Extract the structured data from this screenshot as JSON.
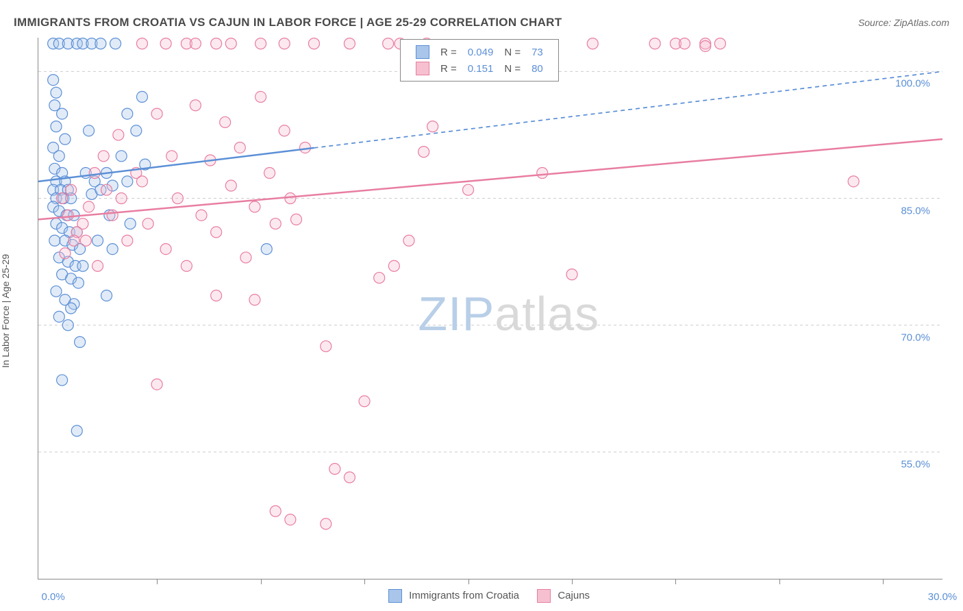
{
  "title": "IMMIGRANTS FROM CROATIA VS CAJUN IN LABOR FORCE | AGE 25-29 CORRELATION CHART",
  "source_label": "Source: ",
  "source_name": "ZipAtlas.com",
  "y_axis_label": "In Labor Force | Age 25-29",
  "watermark": {
    "text_a": "ZIP",
    "text_b": "atlas",
    "color_a": "#b9cfe8",
    "color_b": "#d9d9d9",
    "fontsize": 70
  },
  "plot": {
    "type": "scatter",
    "background": "#ffffff",
    "grid_color": "#cccccc",
    "axis_color": "#888888",
    "xlim": [
      -0.5,
      30.0
    ],
    "ylim": [
      40.0,
      104.0
    ],
    "x_ticks": [
      0.0,
      30.0
    ],
    "x_tick_labels": [
      "0.0%",
      "30.0%"
    ],
    "x_minor_ticks": [
      3.5,
      7.0,
      10.5,
      14.0,
      17.5,
      21.0,
      24.5,
      28.0
    ],
    "y_gridlines": [
      55.0,
      70.0,
      85.0,
      100.0
    ],
    "y_tick_labels": [
      "55.0%",
      "70.0%",
      "85.0%",
      "100.0%"
    ],
    "marker_radius": 8,
    "marker_fill_opacity": 0.35,
    "marker_stroke_width": 1.2
  },
  "series": [
    {
      "id": "croatia",
      "label": "Immigrants from Croatia",
      "color_stroke": "#5b8fd6",
      "color_fill": "#a9c5ea",
      "R": "0.049",
      "N": "73",
      "trend": {
        "x1": -0.5,
        "y1": 87.0,
        "x2": 30.0,
        "y2": 100.0,
        "solid_until_x": 8.8,
        "extrapolate_dash": "6 5",
        "width": 2.5
      },
      "points": [
        [
          0.0,
          103.3
        ],
        [
          0.2,
          103.3
        ],
        [
          0.5,
          103.3
        ],
        [
          0.8,
          103.3
        ],
        [
          1.0,
          103.3
        ],
        [
          1.3,
          103.3
        ],
        [
          1.6,
          103.3
        ],
        [
          2.1,
          103.3
        ],
        [
          0.0,
          99.0
        ],
        [
          0.1,
          97.5
        ],
        [
          0.05,
          96.0
        ],
        [
          0.3,
          95.0
        ],
        [
          0.1,
          93.5
        ],
        [
          0.4,
          92.0
        ],
        [
          0.0,
          91.0
        ],
        [
          0.2,
          90.0
        ],
        [
          0.05,
          88.5
        ],
        [
          0.3,
          88.0
        ],
        [
          0.1,
          87.0
        ],
        [
          0.4,
          87.0
        ],
        [
          0.0,
          86.0
        ],
        [
          0.25,
          86.0
        ],
        [
          0.5,
          86.0
        ],
        [
          0.1,
          85.0
        ],
        [
          0.35,
          85.0
        ],
        [
          0.6,
          85.0
        ],
        [
          0.0,
          84.0
        ],
        [
          0.2,
          83.5
        ],
        [
          0.45,
          83.0
        ],
        [
          0.7,
          83.0
        ],
        [
          0.1,
          82.0
        ],
        [
          0.3,
          81.5
        ],
        [
          0.55,
          81.0
        ],
        [
          0.8,
          81.0
        ],
        [
          0.05,
          80.0
        ],
        [
          0.4,
          80.0
        ],
        [
          0.65,
          79.5
        ],
        [
          0.9,
          79.0
        ],
        [
          0.2,
          78.0
        ],
        [
          0.5,
          77.5
        ],
        [
          0.75,
          77.0
        ],
        [
          1.0,
          77.0
        ],
        [
          0.3,
          76.0
        ],
        [
          0.6,
          75.5
        ],
        [
          0.85,
          75.0
        ],
        [
          0.1,
          74.0
        ],
        [
          0.4,
          73.0
        ],
        [
          0.7,
          72.5
        ],
        [
          0.2,
          71.0
        ],
        [
          0.5,
          70.0
        ],
        [
          1.1,
          88.0
        ],
        [
          1.4,
          87.0
        ],
        [
          1.3,
          85.5
        ],
        [
          1.6,
          86.0
        ],
        [
          1.8,
          88.0
        ],
        [
          2.0,
          86.5
        ],
        [
          2.3,
          90.0
        ],
        [
          2.0,
          79.0
        ],
        [
          2.5,
          87.0
        ],
        [
          2.8,
          93.0
        ],
        [
          2.6,
          82.0
        ],
        [
          3.1,
          89.0
        ],
        [
          3.0,
          97.0
        ],
        [
          0.3,
          63.5
        ],
        [
          0.8,
          57.5
        ],
        [
          0.6,
          72.0
        ],
        [
          1.8,
          73.5
        ],
        [
          2.5,
          95.0
        ],
        [
          1.2,
          93.0
        ],
        [
          7.2,
          79.0
        ],
        [
          1.9,
          83.0
        ],
        [
          0.9,
          68.0
        ],
        [
          1.5,
          80.0
        ]
      ]
    },
    {
      "id": "cajuns",
      "label": "Cajuns",
      "color_stroke": "#e87da0",
      "color_fill": "#f6c0d0",
      "R": "0.151",
      "N": "80",
      "trend": {
        "x1": -0.5,
        "y1": 82.5,
        "x2": 30.0,
        "y2": 92.0,
        "solid_until_x": 30.0,
        "extrapolate_dash": "",
        "width": 2.5
      },
      "points": [
        [
          0.3,
          85.0
        ],
        [
          0.5,
          83.0
        ],
        [
          0.8,
          81.0
        ],
        [
          0.4,
          78.5
        ],
        [
          0.7,
          80.0
        ],
        [
          1.0,
          82.0
        ],
        [
          0.6,
          86.0
        ],
        [
          1.2,
          84.0
        ],
        [
          1.4,
          88.0
        ],
        [
          1.1,
          80.0
        ],
        [
          1.5,
          77.0
        ],
        [
          1.8,
          86.0
        ],
        [
          2.0,
          83.0
        ],
        [
          1.7,
          90.0
        ],
        [
          2.3,
          85.0
        ],
        [
          2.5,
          80.0
        ],
        [
          2.8,
          88.0
        ],
        [
          2.2,
          92.5
        ],
        [
          3.0,
          87.0
        ],
        [
          3.2,
          82.0
        ],
        [
          3.5,
          95.0
        ],
        [
          3.8,
          79.0
        ],
        [
          4.0,
          90.0
        ],
        [
          4.2,
          85.0
        ],
        [
          4.5,
          77.0
        ],
        [
          4.8,
          96.0
        ],
        [
          5.0,
          83.0
        ],
        [
          5.3,
          89.5
        ],
        [
          5.5,
          81.0
        ],
        [
          5.8,
          94.0
        ],
        [
          6.0,
          86.5
        ],
        [
          6.3,
          91.0
        ],
        [
          6.5,
          78.0
        ],
        [
          6.8,
          84.0
        ],
        [
          7.0,
          97.0
        ],
        [
          7.3,
          88.0
        ],
        [
          7.5,
          82.0
        ],
        [
          7.8,
          93.0
        ],
        [
          8.0,
          85.0
        ],
        [
          3.0,
          103.3
        ],
        [
          3.8,
          103.3
        ],
        [
          4.5,
          103.3
        ],
        [
          4.8,
          103.3
        ],
        [
          5.5,
          103.3
        ],
        [
          6.0,
          103.3
        ],
        [
          7.0,
          103.3
        ],
        [
          7.8,
          103.3
        ],
        [
          8.8,
          103.3
        ],
        [
          10.0,
          103.3
        ],
        [
          11.3,
          103.3
        ],
        [
          11.7,
          103.3
        ],
        [
          12.6,
          103.3
        ],
        [
          3.5,
          63.0
        ],
        [
          5.5,
          73.5
        ],
        [
          6.8,
          73.0
        ],
        [
          7.5,
          48.0
        ],
        [
          8.0,
          47.0
        ],
        [
          9.2,
          46.5
        ],
        [
          9.5,
          53.0
        ],
        [
          9.2,
          67.5
        ],
        [
          10.0,
          52.0
        ],
        [
          10.5,
          61.0
        ],
        [
          11.0,
          75.6
        ],
        [
          11.5,
          77.0
        ],
        [
          12.0,
          80.0
        ],
        [
          12.5,
          90.5
        ],
        [
          12.8,
          93.5
        ],
        [
          14.0,
          86.0
        ],
        [
          16.5,
          88.0
        ],
        [
          18.2,
          103.3
        ],
        [
          20.3,
          103.3
        ],
        [
          21.0,
          103.3
        ],
        [
          22.0,
          103.3
        ],
        [
          21.3,
          103.3
        ],
        [
          22.5,
          103.3
        ],
        [
          17.5,
          76.0
        ],
        [
          22.0,
          103.0
        ],
        [
          27.0,
          87.0
        ],
        [
          8.2,
          82.5
        ],
        [
          8.5,
          91.0
        ]
      ]
    }
  ],
  "legend_top": {
    "R_label": "R =",
    "N_label": "N =",
    "value_color": "#5b8fd6",
    "text_color": "#555555"
  },
  "bottom_legend": {
    "text_color": "#555555"
  }
}
